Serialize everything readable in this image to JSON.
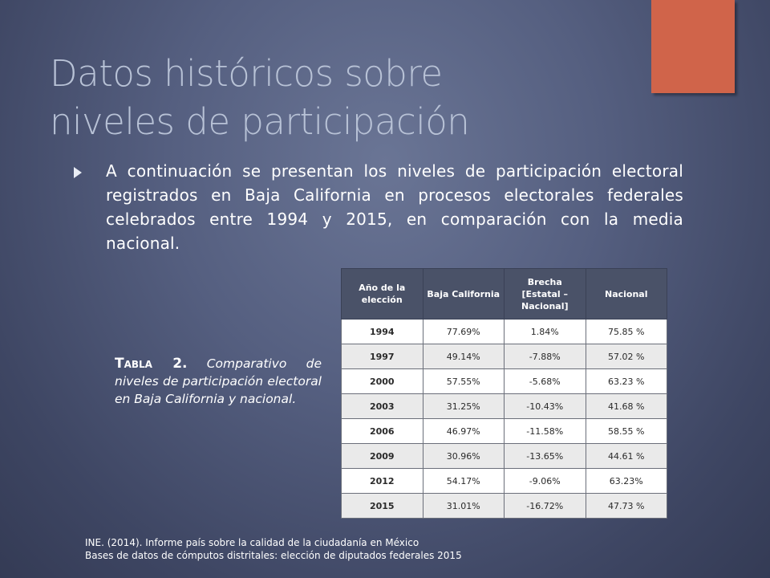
{
  "slide": {
    "title_lines": [
      "Datos históricos sobre",
      "niveles de participación"
    ],
    "bullet": "A continuación se presentan los niveles de participación electoral registrados en Baja California en procesos electorales federales celebrados entre 1994 y 2015, en comparación con la media nacional.",
    "caption": {
      "label": "Tabla 2.",
      "text": "Comparativo de niveles de participación electoral en Baja California y nacional."
    },
    "sources": [
      "INE. (2014). Informe país sobre la calidad de la ciudadanía en México",
      "Bases de datos de cómputos distritales: elección de diputados federales 2015"
    ]
  },
  "table": {
    "headers": [
      "Año de la elección",
      "Baja California",
      "Brecha [Estatal –Nacional]",
      "Nacional"
    ],
    "rows": [
      [
        "1994",
        "77.69%",
        "1.84%",
        "75.85 %"
      ],
      [
        "1997",
        "49.14%",
        "-7.88%",
        "57.02 %"
      ],
      [
        "2000",
        "57.55%",
        "-5.68%",
        "63.23 %"
      ],
      [
        "2003",
        "31.25%",
        "-10.43%",
        "41.68 %"
      ],
      [
        "2006",
        "46.97%",
        "-11.58%",
        "58.55 %"
      ],
      [
        "2009",
        "30.96%",
        "-13.65%",
        "44.61 %"
      ],
      [
        "2012",
        "54.17%",
        "-9.06%",
        "63.23%"
      ],
      [
        "2015",
        "31.01%",
        "-16.72%",
        "47.73 %"
      ]
    ]
  },
  "colors": {
    "accent": "#d0644a",
    "title": "#b8c2d6",
    "header_bg": "#4a5268"
  }
}
